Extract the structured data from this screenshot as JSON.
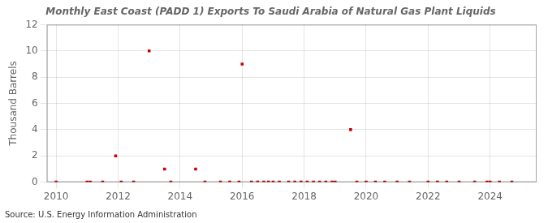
{
  "chart_data": {
    "type": "scatter",
    "title": "Monthly East Coast (PADD 1) Exports To Saudi Arabia of Natural Gas Plant Liquids",
    "ylabel": "Thousand Barrels",
    "annotation": "Source: U.S. Energy Information Administration",
    "color": "#cc0000",
    "marker": "square",
    "grid": true,
    "xlim": [
      2009.7,
      2025.5
    ],
    "ylim": [
      0,
      12
    ],
    "xticks": [
      2010,
      2012,
      2014,
      2016,
      2018,
      2020,
      2022,
      2024
    ],
    "yticks": [
      0,
      2,
      4,
      6,
      8,
      10,
      12
    ],
    "x": [
      2010.0,
      2011.0,
      2011.1,
      2011.5,
      2011.92,
      2012.1,
      2012.5,
      2013.0,
      2013.5,
      2013.7,
      2014.5,
      2014.8,
      2015.3,
      2015.6,
      2015.9,
      2016.0,
      2016.3,
      2016.5,
      2016.7,
      2016.85,
      2017.0,
      2017.2,
      2017.5,
      2017.7,
      2017.9,
      2018.1,
      2018.3,
      2018.5,
      2018.7,
      2018.9,
      2019.0,
      2019.5,
      2019.7,
      2020.0,
      2020.3,
      2020.6,
      2021.0,
      2021.4,
      2022.0,
      2022.3,
      2022.6,
      2023.0,
      2023.5,
      2023.9,
      2024.0,
      2024.3,
      2024.7
    ],
    "values": [
      0,
      0,
      0,
      0,
      2,
      0,
      0,
      10,
      1,
      0,
      1,
      0,
      0,
      0,
      0,
      9,
      0,
      0,
      0,
      0,
      0,
      0,
      0,
      0,
      0,
      0,
      0,
      0,
      0,
      0,
      0,
      4,
      0,
      0,
      0,
      0,
      0,
      0,
      0,
      0,
      0,
      0,
      0,
      0,
      0,
      0,
      0
    ]
  }
}
